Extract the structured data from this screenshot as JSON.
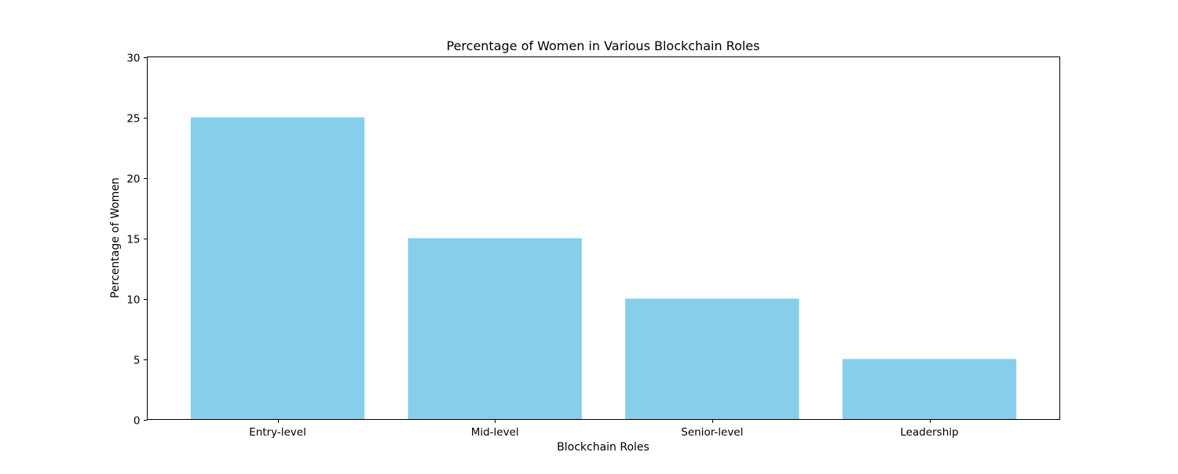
{
  "chart_data": {
    "type": "bar",
    "title": "Percentage of Women in Various Blockchain Roles",
    "xlabel": "Blockchain Roles",
    "ylabel": "Percentage of Women",
    "categories": [
      "Entry-level",
      "Mid-level",
      "Senior-level",
      "Leadership"
    ],
    "values": [
      25,
      15,
      10,
      5
    ],
    "ylim": [
      0,
      30
    ],
    "yticks": [
      0,
      5,
      10,
      15,
      20,
      25,
      30
    ],
    "bar_color": "#87CEEB",
    "grid": false,
    "legend": "none"
  }
}
